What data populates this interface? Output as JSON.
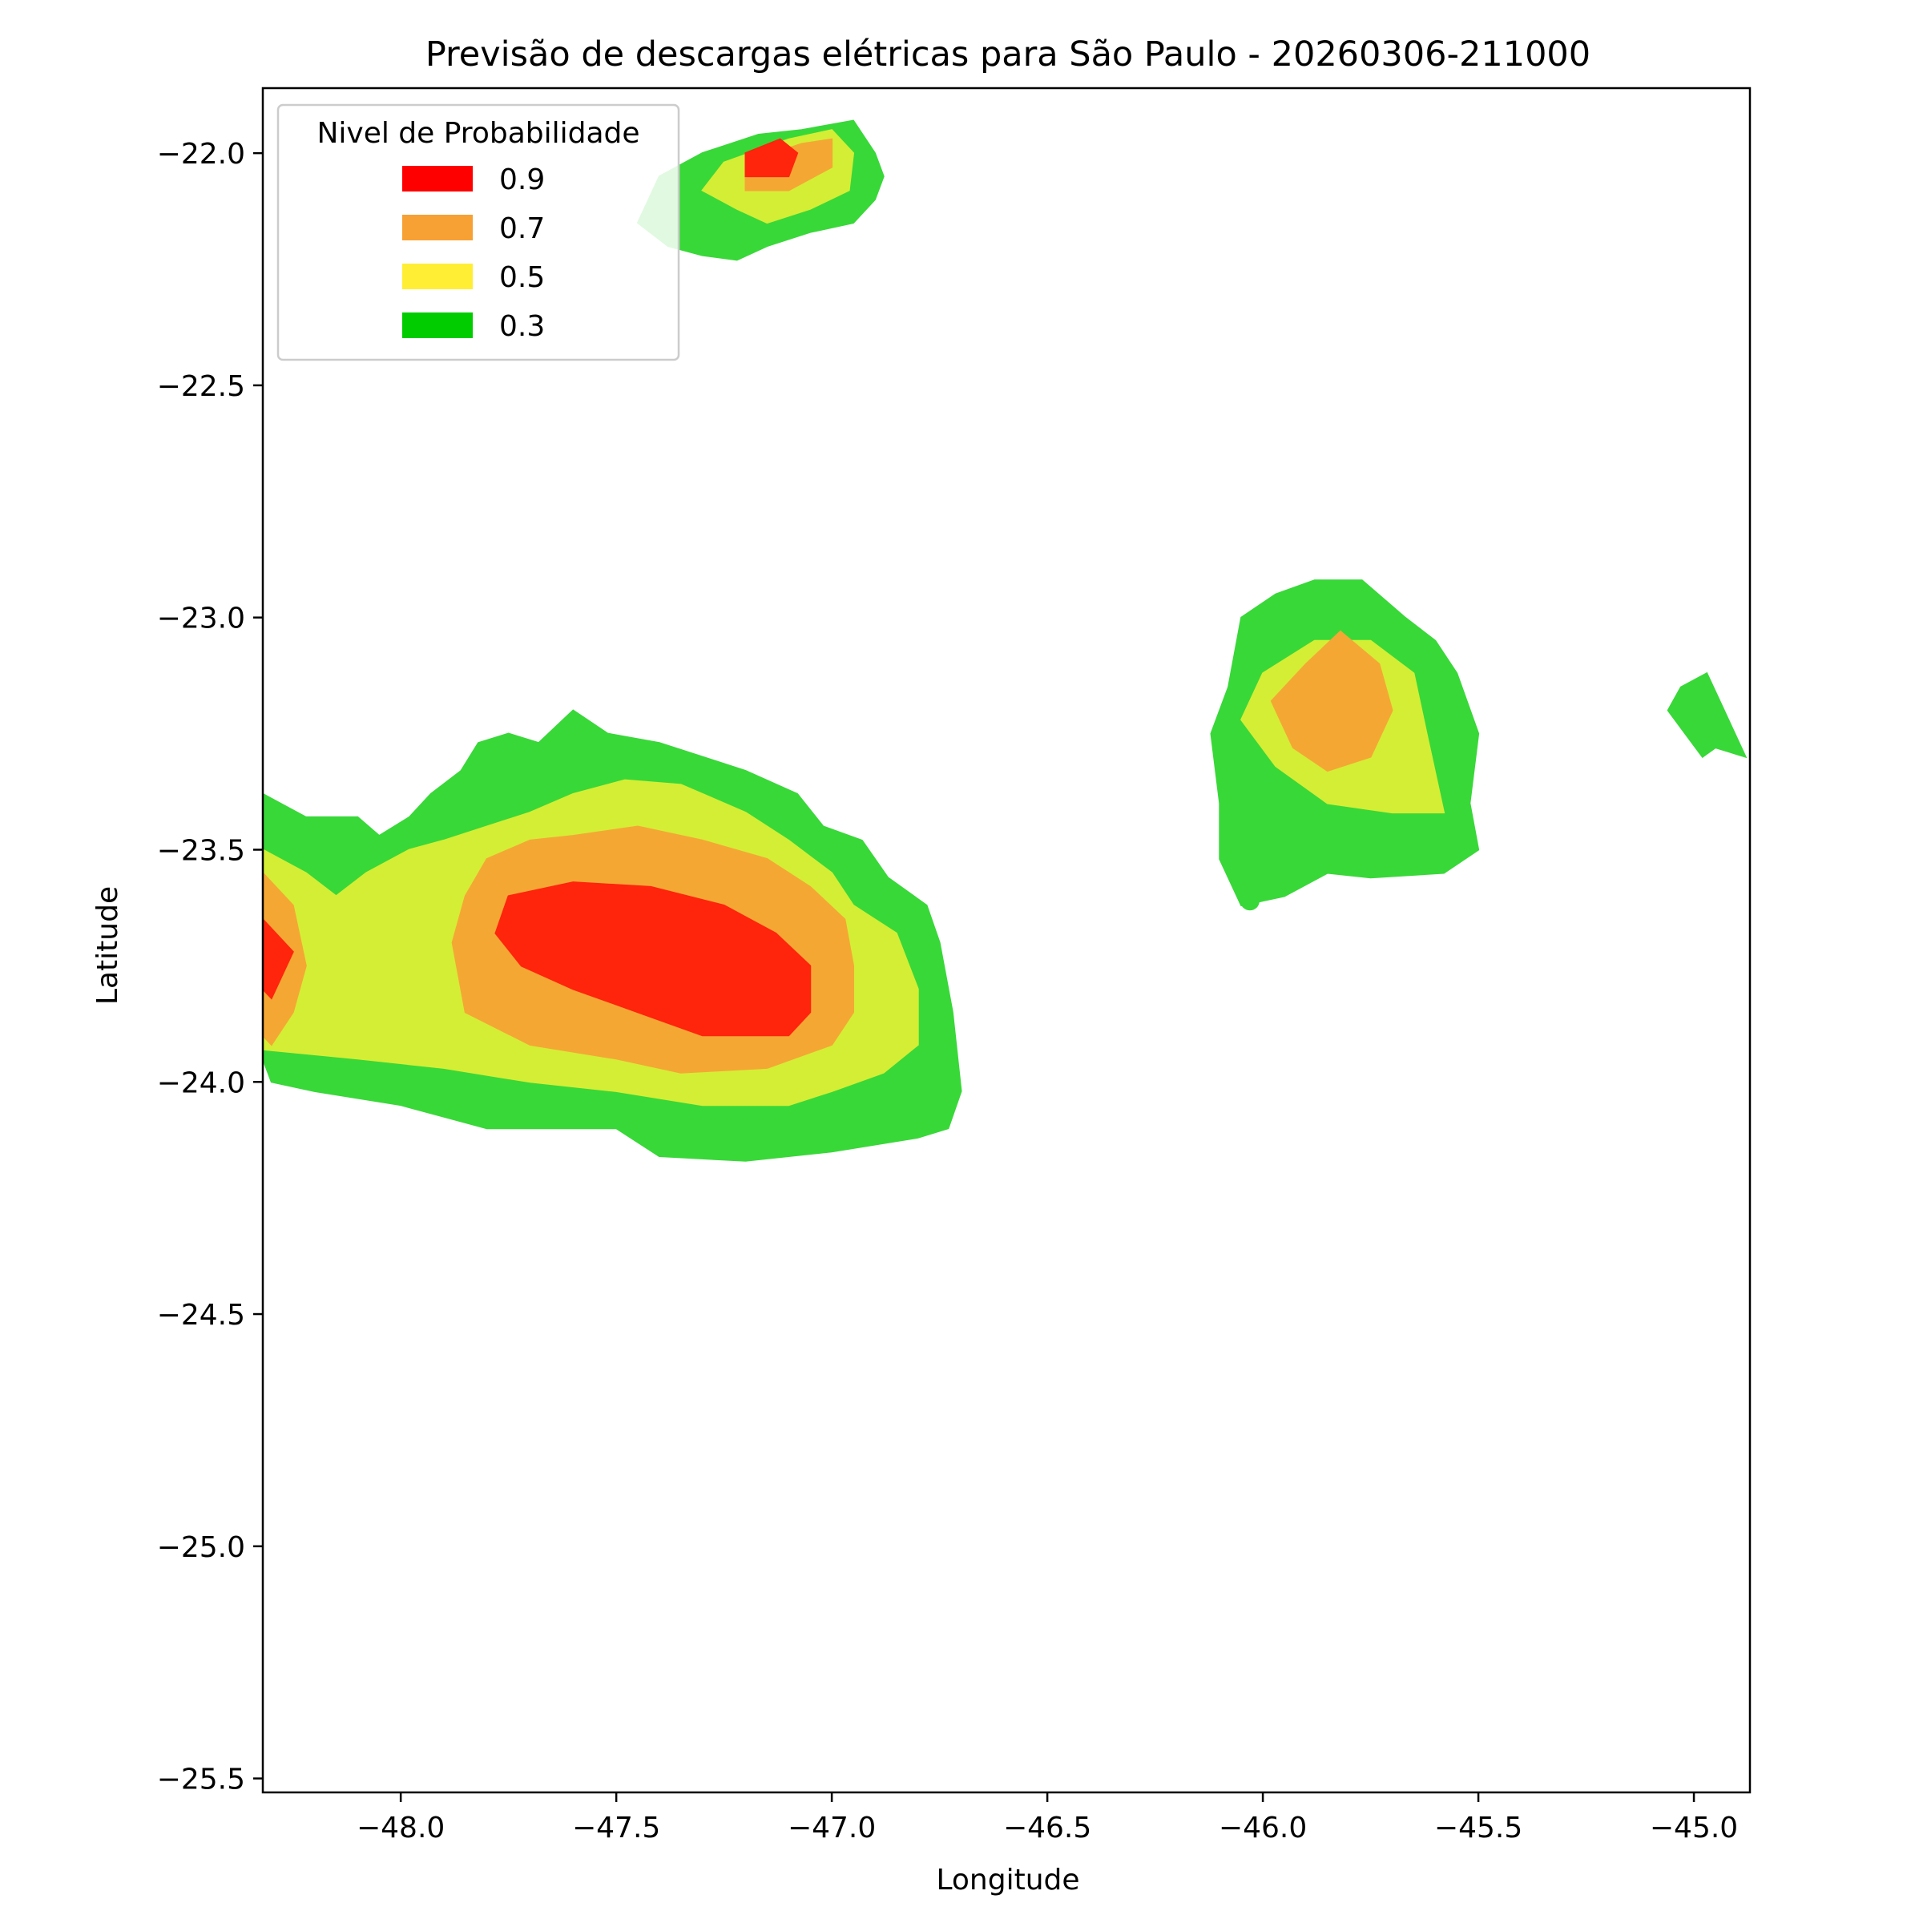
{
  "chart_data": {
    "type": "contour",
    "title": "Previsão de descargas elétricas para São Paulo - 20260306-211000",
    "xlabel": "Longitude",
    "ylabel": "Latitude",
    "xlim": [
      -48.32,
      -44.87
    ],
    "ylim": [
      -25.53,
      -21.86
    ],
    "xticks": [
      -48.0,
      -47.5,
      -47.0,
      -46.5,
      -46.0,
      -45.5,
      -45.0
    ],
    "yticks": [
      -22.0,
      -22.5,
      -23.0,
      -23.5,
      -24.0,
      -24.5,
      -25.0,
      -25.5
    ],
    "xtick_labels": [
      "−48.0",
      "−47.5",
      "−47.0",
      "−46.5",
      "−46.0",
      "−45.5",
      "−45.0"
    ],
    "ytick_labels": [
      "−22.0",
      "−22.5",
      "−23.0",
      "−23.5",
      "−24.0",
      "−24.5",
      "−25.0",
      "−25.5"
    ],
    "grid": false,
    "legend": {
      "title": "Nivel de Probabilidade",
      "placement": "upper-left",
      "entries": [
        {
          "label": "0.9",
          "color": "#ff0000"
        },
        {
          "label": "0.7",
          "color": "#f7a033"
        },
        {
          "label": "0.5",
          "color": "#ffee33"
        },
        {
          "label": "0.3",
          "color": "#00cc00"
        }
      ]
    },
    "fill_colors": {
      "0.9": "#ff240c",
      "0.7": "#f5a734",
      "0.5": "#d4ee35",
      "0.3": "#38d838"
    },
    "regions": [
      {
        "level": 0.3,
        "polygons": [
          [
            [
              -48.32,
              -23.38
            ],
            [
              -48.28,
              -23.4
            ],
            [
              -48.22,
              -23.43
            ],
            [
              -48.1,
              -23.43
            ],
            [
              -48.05,
              -23.47
            ],
            [
              -47.98,
              -23.43
            ],
            [
              -47.93,
              -23.38
            ],
            [
              -47.86,
              -23.33
            ],
            [
              -47.82,
              -23.27
            ],
            [
              -47.75,
              -23.25
            ],
            [
              -47.68,
              -23.27
            ],
            [
              -47.6,
              -23.2
            ],
            [
              -47.52,
              -23.25
            ],
            [
              -47.4,
              -23.27
            ],
            [
              -47.3,
              -23.3
            ],
            [
              -47.2,
              -23.33
            ],
            [
              -47.08,
              -23.38
            ],
            [
              -47.02,
              -23.45
            ],
            [
              -46.93,
              -23.48
            ],
            [
              -46.87,
              -23.56
            ],
            [
              -46.78,
              -23.62
            ],
            [
              -46.75,
              -23.7
            ],
            [
              -46.72,
              -23.85
            ],
            [
              -46.7,
              -24.02
            ],
            [
              -46.73,
              -24.1
            ],
            [
              -46.8,
              -24.12
            ],
            [
              -47.0,
              -24.15
            ],
            [
              -47.2,
              -24.17
            ],
            [
              -47.4,
              -24.16
            ],
            [
              -47.5,
              -24.1
            ],
            [
              -47.7,
              -24.1
            ],
            [
              -47.8,
              -24.1
            ],
            [
              -48.0,
              -24.05
            ],
            [
              -48.2,
              -24.02
            ],
            [
              -48.3,
              -24.0
            ],
            [
              -48.32,
              -23.95
            ]
          ],
          [
            [
              -46.05,
              -23.0
            ],
            [
              -45.97,
              -22.95
            ],
            [
              -45.88,
              -22.92
            ],
            [
              -45.77,
              -22.92
            ],
            [
              -45.67,
              -23.0
            ],
            [
              -45.6,
              -23.05
            ],
            [
              -45.55,
              -23.12
            ],
            [
              -45.5,
              -23.25
            ],
            [
              -45.52,
              -23.4
            ],
            [
              -45.5,
              -23.5
            ],
            [
              -45.58,
              -23.55
            ],
            [
              -45.75,
              -23.56
            ],
            [
              -45.85,
              -23.55
            ],
            [
              -45.95,
              -23.6
            ],
            [
              -46.05,
              -23.62
            ],
            [
              -46.1,
              -23.52
            ],
            [
              -46.1,
              -23.4
            ],
            [
              -46.12,
              -23.25
            ],
            [
              -46.08,
              -23.15
            ]
          ],
          [
            [
              -45.03,
              -23.15
            ],
            [
              -44.97,
              -23.12
            ],
            [
              -44.93,
              -23.2
            ],
            [
              -44.88,
              -23.3
            ],
            [
              -44.95,
              -23.28
            ],
            [
              -44.98,
              -23.3
            ],
            [
              -45.02,
              -23.25
            ],
            [
              -45.06,
              -23.2
            ]
          ],
          [
            [
              -47.4,
              -22.05
            ],
            [
              -47.3,
              -22.0
            ],
            [
              -47.17,
              -21.96
            ],
            [
              -47.07,
              -21.95
            ],
            [
              -46.95,
              -21.93
            ],
            [
              -46.9,
              -22.0
            ],
            [
              -46.88,
              -22.05
            ],
            [
              -46.9,
              -22.1
            ],
            [
              -46.95,
              -22.15
            ],
            [
              -47.05,
              -22.17
            ],
            [
              -47.15,
              -22.2
            ],
            [
              -47.22,
              -22.23
            ],
            [
              -47.3,
              -22.22
            ],
            [
              -47.38,
              -22.2
            ],
            [
              -47.45,
              -22.15
            ]
          ]
        ]
      },
      {
        "level": 0.5,
        "polygons": [
          [
            [
              -48.32,
              -23.5
            ],
            [
              -48.22,
              -23.55
            ],
            [
              -48.15,
              -23.6
            ],
            [
              -48.08,
              -23.55
            ],
            [
              -47.98,
              -23.5
            ],
            [
              -47.9,
              -23.48
            ],
            [
              -47.8,
              -23.45
            ],
            [
              -47.7,
              -23.42
            ],
            [
              -47.6,
              -23.38
            ],
            [
              -47.48,
              -23.35
            ],
            [
              -47.35,
              -23.36
            ],
            [
              -47.2,
              -23.42
            ],
            [
              -47.1,
              -23.48
            ],
            [
              -47.0,
              -23.55
            ],
            [
              -46.95,
              -23.62
            ],
            [
              -46.85,
              -23.68
            ],
            [
              -46.8,
              -23.8
            ],
            [
              -46.8,
              -23.92
            ],
            [
              -46.88,
              -23.98
            ],
            [
              -47.0,
              -24.02
            ],
            [
              -47.1,
              -24.05
            ],
            [
              -47.3,
              -24.05
            ],
            [
              -47.5,
              -24.02
            ],
            [
              -47.7,
              -24.0
            ],
            [
              -47.9,
              -23.97
            ],
            [
              -48.1,
              -23.95
            ],
            [
              -48.32,
              -23.93
            ]
          ],
          [
            [
              -45.88,
              -23.05
            ],
            [
              -45.75,
              -23.05
            ],
            [
              -45.65,
              -23.12
            ],
            [
              -45.62,
              -23.25
            ],
            [
              -45.58,
              -23.42
            ],
            [
              -45.7,
              -23.42
            ],
            [
              -45.85,
              -23.4
            ],
            [
              -45.97,
              -23.32
            ],
            [
              -46.05,
              -23.22
            ],
            [
              -46.0,
              -23.12
            ]
          ],
          [
            [
              -47.25,
              -22.02
            ],
            [
              -47.1,
              -21.97
            ],
            [
              -47.0,
              -21.95
            ],
            [
              -46.95,
              -22.0
            ],
            [
              -46.96,
              -22.08
            ],
            [
              -47.05,
              -22.12
            ],
            [
              -47.15,
              -22.15
            ],
            [
              -47.22,
              -22.12
            ],
            [
              -47.3,
              -22.08
            ]
          ]
        ]
      },
      {
        "level": 0.7,
        "polygons": [
          [
            [
              -48.32,
              -23.55
            ],
            [
              -48.25,
              -23.62
            ],
            [
              -48.22,
              -23.75
            ],
            [
              -48.25,
              -23.85
            ],
            [
              -48.3,
              -23.92
            ],
            [
              -48.32,
              -23.9
            ]
          ],
          [
            [
              -47.8,
              -23.52
            ],
            [
              -47.7,
              -23.48
            ],
            [
              -47.6,
              -23.47
            ],
            [
              -47.45,
              -23.45
            ],
            [
              -47.3,
              -23.48
            ],
            [
              -47.15,
              -23.52
            ],
            [
              -47.05,
              -23.58
            ],
            [
              -46.97,
              -23.65
            ],
            [
              -46.95,
              -23.75
            ],
            [
              -46.95,
              -23.85
            ],
            [
              -47.0,
              -23.92
            ],
            [
              -47.15,
              -23.97
            ],
            [
              -47.35,
              -23.98
            ],
            [
              -47.5,
              -23.95
            ],
            [
              -47.7,
              -23.92
            ],
            [
              -47.85,
              -23.85
            ],
            [
              -47.88,
              -23.7
            ],
            [
              -47.85,
              -23.6
            ]
          ],
          [
            [
              -45.9,
              -23.1
            ],
            [
              -45.82,
              -23.03
            ],
            [
              -45.73,
              -23.1
            ],
            [
              -45.7,
              -23.2
            ],
            [
              -45.75,
              -23.3
            ],
            [
              -45.85,
              -23.33
            ],
            [
              -45.93,
              -23.28
            ],
            [
              -45.98,
              -23.18
            ]
          ],
          [
            [
              -47.2,
              -22.02
            ],
            [
              -47.07,
              -21.98
            ],
            [
              -47.0,
              -21.97
            ],
            [
              -47.0,
              -22.03
            ],
            [
              -47.1,
              -22.08
            ],
            [
              -47.2,
              -22.08
            ]
          ]
        ]
      },
      {
        "level": 0.9,
        "polygons": [
          [
            [
              -48.32,
              -23.65
            ],
            [
              -48.25,
              -23.72
            ],
            [
              -48.3,
              -23.82
            ],
            [
              -48.32,
              -23.8
            ]
          ],
          [
            [
              -47.75,
              -23.6
            ],
            [
              -47.6,
              -23.57
            ],
            [
              -47.42,
              -23.58
            ],
            [
              -47.25,
              -23.62
            ],
            [
              -47.13,
              -23.68
            ],
            [
              -47.05,
              -23.75
            ],
            [
              -47.05,
              -23.85
            ],
            [
              -47.1,
              -23.9
            ],
            [
              -47.3,
              -23.9
            ],
            [
              -47.45,
              -23.85
            ],
            [
              -47.6,
              -23.8
            ],
            [
              -47.72,
              -23.75
            ],
            [
              -47.78,
              -23.68
            ]
          ],
          [
            [
              -47.2,
              -22.0
            ],
            [
              -47.12,
              -21.97
            ],
            [
              -47.08,
              -22.0
            ],
            [
              -47.1,
              -22.05
            ],
            [
              -47.2,
              -22.05
            ]
          ]
        ]
      }
    ],
    "points": [
      {
        "level": 0.3,
        "lon": -46.03,
        "lat": -23.61
      }
    ]
  }
}
